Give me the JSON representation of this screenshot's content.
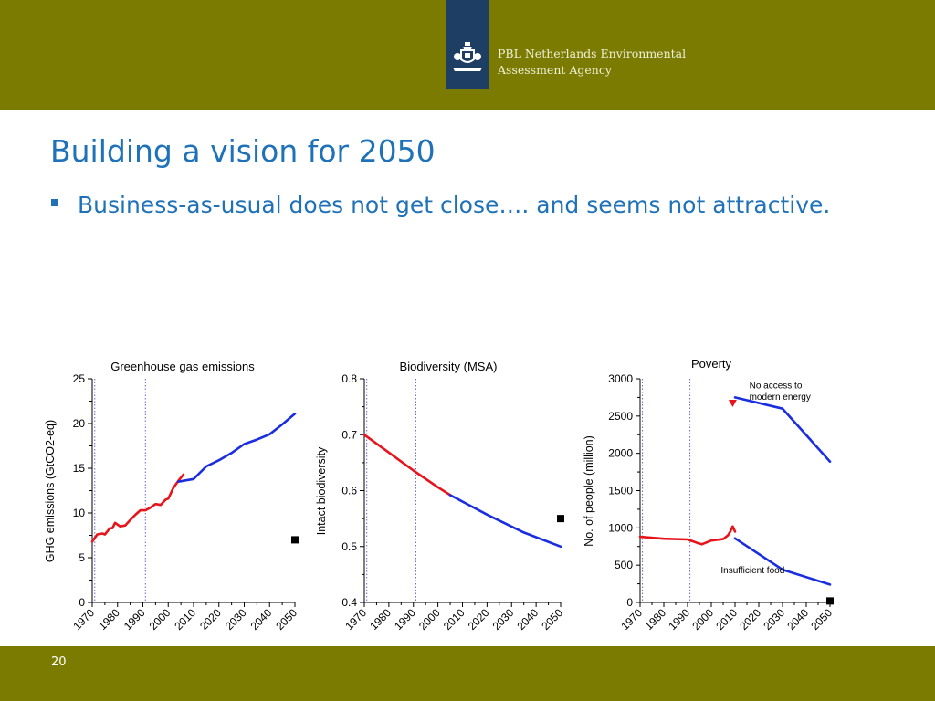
{
  "header": {
    "agency_line1": "PBL Netherlands Environmental",
    "agency_line2": "Assessment Agency"
  },
  "slide": {
    "title": "Building a vision for 2050",
    "bullet": "Business-as-usual does not get close…. and seems not attractive.",
    "page_number": "20"
  },
  "colors": {
    "band": "#7a7b00",
    "logo_box": "#1f3e63",
    "title_text": "#1f72b8",
    "historical": "#e8141c",
    "projection": "#1a2ee0",
    "target": "#000000",
    "reference_lines": "#6666cc"
  },
  "chart_data": [
    {
      "type": "line",
      "title": "Greenhouse gas emissions",
      "xlabel": "",
      "ylabel": "GHG emissions (GtCO2-eq)",
      "xlim": [
        1970,
        2050
      ],
      "ylim": [
        0,
        25
      ],
      "x_ticks": [
        1970,
        1980,
        1990,
        2000,
        2010,
        2020,
        2030,
        2040,
        2050
      ],
      "y_ticks": [
        0,
        5,
        10,
        15,
        20,
        25
      ],
      "reference_lines": [
        1971,
        1991
      ],
      "series": [
        {
          "role": "historical",
          "color": "#e8141c",
          "points": [
            [
              1970,
              6.8
            ],
            [
              1972,
              7.6
            ],
            [
              1974,
              7.7
            ],
            [
              1975,
              7.6
            ],
            [
              1977,
              8.3
            ],
            [
              1978,
              8.3
            ],
            [
              1979,
              8.9
            ],
            [
              1981,
              8.5
            ],
            [
              1983,
              8.6
            ],
            [
              1985,
              9.2
            ],
            [
              1987,
              9.8
            ],
            [
              1989,
              10.3
            ],
            [
              1991,
              10.3
            ],
            [
              1993,
              10.6
            ],
            [
              1995,
              11.0
            ],
            [
              1997,
              10.9
            ],
            [
              1999,
              11.5
            ],
            [
              2000,
              11.6
            ],
            [
              2002,
              12.8
            ],
            [
              2004,
              13.6
            ],
            [
              2006,
              14.3
            ]
          ]
        },
        {
          "role": "projection",
          "color": "#1a2ee0",
          "points": [
            [
              2004,
              13.5
            ],
            [
              2010,
              13.8
            ],
            [
              2015,
              15.2
            ],
            [
              2020,
              15.9
            ],
            [
              2025,
              16.7
            ],
            [
              2030,
              17.7
            ],
            [
              2035,
              18.2
            ],
            [
              2040,
              18.8
            ],
            [
              2045,
              19.9
            ],
            [
              2050,
              21.1
            ]
          ]
        }
      ],
      "markers": [
        {
          "year": 2050,
          "value": 7.0,
          "shape": "square",
          "color": "#000000"
        }
      ]
    },
    {
      "type": "line",
      "title": "Biodiversity (MSA)",
      "xlabel": "",
      "ylabel": "Intact biodiversity",
      "xlim": [
        1970,
        2050
      ],
      "ylim": [
        0.4,
        0.8
      ],
      "x_ticks": [
        1970,
        1980,
        1990,
        2000,
        2010,
        2020,
        2030,
        2040,
        2050
      ],
      "y_ticks": [
        0.4,
        0.5,
        0.6,
        0.7,
        0.8
      ],
      "y_tick_labels": [
        "0.4",
        "0.5",
        "0.6",
        "0.7",
        "0.8"
      ],
      "reference_lines": [
        1971,
        1991
      ],
      "series": [
        {
          "role": "historical",
          "color": "#e8141c",
          "points": [
            [
              1970,
              0.7
            ],
            [
              1980,
              0.668
            ],
            [
              1990,
              0.636
            ],
            [
              2000,
              0.606
            ],
            [
              2005,
              0.592
            ]
          ]
        },
        {
          "role": "projection",
          "color": "#1a2ee0",
          "points": [
            [
              2005,
              0.592
            ],
            [
              2020,
              0.557
            ],
            [
              2035,
              0.525
            ],
            [
              2050,
              0.5
            ]
          ]
        }
      ],
      "markers": [
        {
          "year": 2050,
          "value": 0.55,
          "shape": "square",
          "color": "#000000"
        }
      ]
    },
    {
      "type": "line",
      "title": "Poverty",
      "xlabel": "",
      "ylabel": "No. of people (million)",
      "xlim": [
        1970,
        2050
      ],
      "ylim": [
        0,
        3000
      ],
      "x_ticks": [
        1970,
        1980,
        1990,
        2000,
        2010,
        2020,
        2030,
        2040,
        2050
      ],
      "y_ticks": [
        0,
        500,
        1000,
        1500,
        2000,
        2500,
        3000
      ],
      "reference_lines": [
        1971,
        1991
      ],
      "annotations": [
        {
          "text": "No access to",
          "x": 2016,
          "y": 2870
        },
        {
          "text": "modern energy",
          "x": 2016,
          "y": 2720
        },
        {
          "text": "Insufficient food",
          "x": 2004,
          "y": 390
        }
      ],
      "series": [
        {
          "role": "historical",
          "color": "#e8141c",
          "points": [
            [
              1970,
              880
            ],
            [
              1980,
              855
            ],
            [
              1990,
              845
            ],
            [
              1994,
              800
            ],
            [
              1996,
              780
            ],
            [
              2000,
              830
            ],
            [
              2005,
              850
            ],
            [
              2007,
              900
            ],
            [
              2008,
              950
            ],
            [
              2009,
              1020
            ],
            [
              2010,
              950
            ]
          ]
        },
        {
          "role": "projection",
          "color": "#1a2ee0",
          "points": [
            [
              2010,
              860
            ],
            [
              2030,
              440
            ],
            [
              2050,
              240
            ]
          ]
        },
        {
          "role": "projection",
          "color": "#1a2ee0",
          "points": [
            [
              2010,
              2750
            ],
            [
              2030,
              2600
            ],
            [
              2050,
              1890
            ]
          ]
        }
      ],
      "markers": [
        {
          "year": 2009,
          "value": 2670,
          "shape": "triangle-down",
          "color": "#e8141c"
        },
        {
          "year": 2050,
          "value": 20,
          "shape": "square",
          "color": "#000000"
        }
      ]
    }
  ]
}
